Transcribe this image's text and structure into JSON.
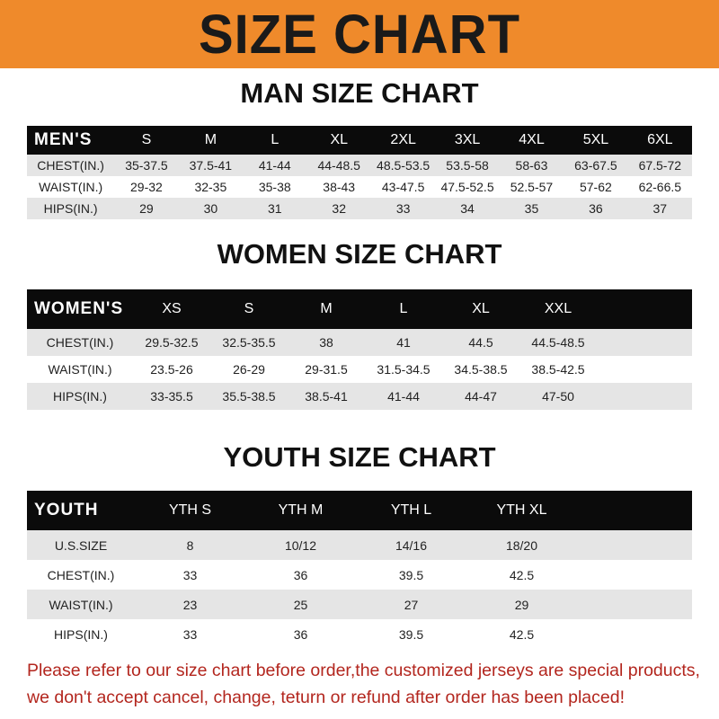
{
  "banner_title": "SIZE CHART",
  "men": {
    "title": "MAN SIZE CHART",
    "header": "MEN'S",
    "sizes": [
      "S",
      "M",
      "L",
      "XL",
      "2XL",
      "3XL",
      "4XL",
      "5XL",
      "6XL"
    ],
    "rows": [
      {
        "label": "CHEST(IN.)",
        "values": [
          "35-37.5",
          "37.5-41",
          "41-44",
          "44-48.5",
          "48.5-53.5",
          "53.5-58",
          "58-63",
          "63-67.5",
          "67.5-72"
        ]
      },
      {
        "label": "WAIST(IN.)",
        "values": [
          "29-32",
          "32-35",
          "35-38",
          "38-43",
          "43-47.5",
          "47.5-52.5",
          "52.5-57",
          "57-62",
          "62-66.5"
        ]
      },
      {
        "label": "HIPS(IN.)",
        "values": [
          "29",
          "30",
          "31",
          "32",
          "33",
          "34",
          "35",
          "36",
          "37"
        ]
      }
    ]
  },
  "women": {
    "title": "WOMEN SIZE CHART",
    "header": "WOMEN'S",
    "sizes": [
      "XS",
      "S",
      "M",
      "L",
      "XL",
      "XXL"
    ],
    "rows": [
      {
        "label": "CHEST(IN.)",
        "values": [
          "29.5-32.5",
          "32.5-35.5",
          "38",
          "41",
          "44.5",
          "44.5-48.5"
        ]
      },
      {
        "label": "WAIST(IN.)",
        "values": [
          "23.5-26",
          "26-29",
          "29-31.5",
          "31.5-34.5",
          "34.5-38.5",
          "38.5-42.5"
        ]
      },
      {
        "label": "HIPS(IN.)",
        "values": [
          "33-35.5",
          "35.5-38.5",
          "38.5-41",
          "41-44",
          "44-47",
          "47-50"
        ]
      }
    ]
  },
  "youth": {
    "title": "YOUTH SIZE CHART",
    "header": "YOUTH",
    "sizes": [
      "YTH S",
      "YTH M",
      "YTH L",
      "YTH XL"
    ],
    "rows": [
      {
        "label": "U.S.SIZE",
        "values": [
          "8",
          "10/12",
          "14/16",
          "18/20"
        ]
      },
      {
        "label": "CHEST(IN.)",
        "values": [
          "33",
          "36",
          "39.5",
          "42.5"
        ]
      },
      {
        "label": "WAIST(IN.)",
        "values": [
          "23",
          "25",
          "27",
          "29"
        ]
      },
      {
        "label": "HIPS(IN.)",
        "values": [
          "33",
          "36",
          "39.5",
          "42.5"
        ]
      }
    ]
  },
  "notice": {
    "line1": "Please refer to our size chart before order,the customized jerseys are special products,",
    "line2": "we don't accept cancel, change, teturn or refund after order has been placed!"
  },
  "colors": {
    "banner": "#ef8a2b",
    "header_bg": "#0b0b0b",
    "stripe": "#e5e5e5",
    "notice": "#b3261e"
  }
}
